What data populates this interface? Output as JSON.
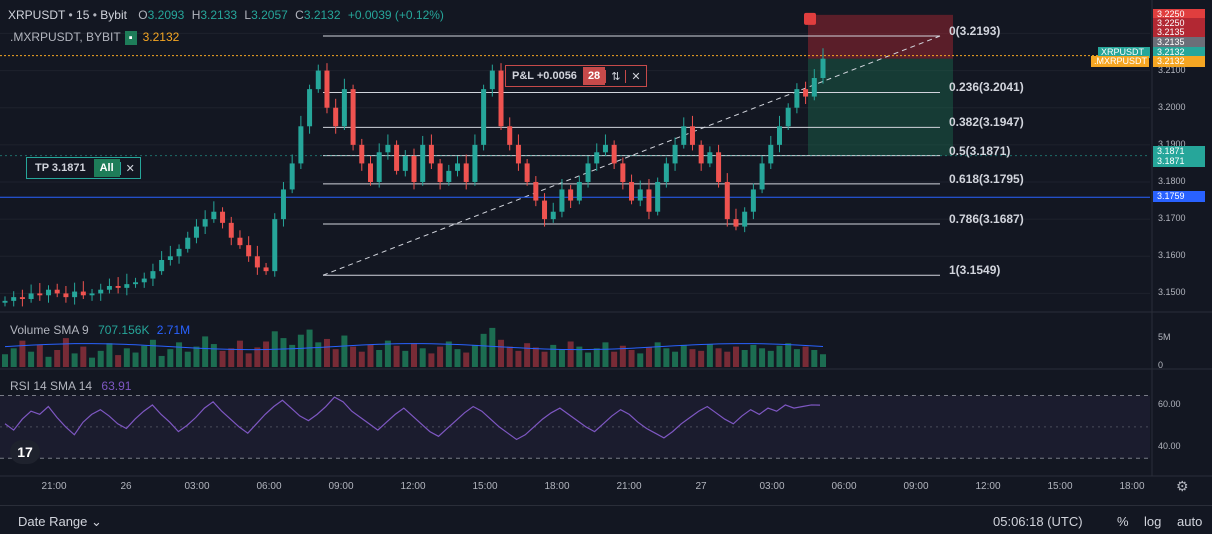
{
  "header": {
    "symbol": "XRPUSDT",
    "interval": "15",
    "exchange": "Bybit",
    "o_label": "O",
    "o": "3.2093",
    "h_label": "H",
    "h": "3.2133",
    "l_label": "L",
    "l": "3.2057",
    "c_label": "C",
    "c": "3.2132",
    "change": "+0.0039 (+0.12%)"
  },
  "secondary_symbol": {
    "label": ".MXRPUSDT, BYBIT",
    "price": "3.2132"
  },
  "tp_tag": {
    "label": "TP 3.1871",
    "all": "All",
    "close": "✕"
  },
  "pnl_tag": {
    "label": "P&L +0.0056",
    "qty": "28",
    "reverse": "⇅",
    "close": "✕"
  },
  "indicators": {
    "volume": {
      "name": "Volume SMA 9",
      "v1": "707.156K",
      "v2": "2.71M"
    },
    "rsi": {
      "name": "RSI 14 SMA 14",
      "value": "63.91"
    }
  },
  "price_tags": [
    {
      "text": "3.2250",
      "color": "#e03e3e",
      "price": 3.225
    },
    {
      "text": "3.2250",
      "color": "#b22833",
      "price": 3.2225
    },
    {
      "text": "3.2135",
      "color": "#b22833",
      "price": 3.22
    },
    {
      "text": "3.2135",
      "color": "#6b6e78",
      "price": 3.2174
    },
    {
      "text": "3.2132",
      "color": "#26a69a",
      "price": 3.2148
    },
    {
      "text": "3.2132",
      "color": "#f5a623",
      "price": 3.2124
    },
    {
      "text": "3.1871",
      "color": "#26a69a",
      "price": 3.188
    },
    {
      "text": "3.1871",
      "color": "#26a69a",
      "price": 3.1853
    },
    {
      "text": "3.1759",
      "color": "#2962ff",
      "price": 3.1759
    }
  ],
  "axis_price_ticks": [
    "3.2100",
    "3.2000",
    "3.1900",
    "3.1800",
    "3.1700",
    "3.1600",
    "3.1500"
  ],
  "pos_tags": [
    {
      "text": "XRPUSDT",
      "color": "#26a69a"
    },
    {
      "text": ".MXRPUSDT",
      "color": "#f5a623"
    }
  ],
  "volume_axis": [
    "5M",
    "0"
  ],
  "rsi_axis": [
    "60.00",
    "40.00"
  ],
  "time_labels": [
    "21:00",
    "26",
    "03:00",
    "06:00",
    "09:00",
    "12:00",
    "15:00",
    "18:00",
    "21:00",
    "27",
    "03:00",
    "06:00",
    "09:00",
    "12:00",
    "15:00",
    "18:00"
  ],
  "footer": {
    "date_range": "Date Range",
    "time": "05:06:18 (UTC)",
    "percent": "%",
    "log": "log",
    "auto": "auto"
  },
  "chart_data": {
    "type": "candlestick",
    "symbol": "XRPUSDT",
    "interval": "15",
    "ylim": [
      3.145,
      3.229
    ],
    "last_price": 3.2132,
    "blue_line_price": 3.1759,
    "fibonacci": [
      {
        "level": "0",
        "price": 3.2193
      },
      {
        "level": "0.236",
        "price": 3.2041
      },
      {
        "level": "0.382",
        "price": 3.1947
      },
      {
        "level": "0.5",
        "price": 3.1871
      },
      {
        "level": "0.618",
        "price": 3.1795
      },
      {
        "level": "0.786",
        "price": 3.1687
      },
      {
        "level": "1",
        "price": 3.1549
      }
    ],
    "short_position": {
      "entry": 3.2132,
      "stop": 3.225,
      "target": 3.1871
    },
    "candle_close_path": [
      3.148,
      3.149,
      3.1485,
      3.15,
      3.1495,
      3.151,
      3.15,
      3.149,
      3.1505,
      3.1495,
      3.15,
      3.151,
      3.152,
      3.1515,
      3.1525,
      3.153,
      3.154,
      3.156,
      3.159,
      3.16,
      3.162,
      3.165,
      3.168,
      3.17,
      3.172,
      3.169,
      3.165,
      3.163,
      3.16,
      3.157,
      3.156,
      3.17,
      3.178,
      3.185,
      3.195,
      3.205,
      3.21,
      3.2,
      3.195,
      3.205,
      3.19,
      3.185,
      3.18,
      3.188,
      3.19,
      3.183,
      3.187,
      3.18,
      3.19,
      3.185,
      3.18,
      3.183,
      3.185,
      3.18,
      3.19,
      3.205,
      3.21,
      3.195,
      3.19,
      3.185,
      3.18,
      3.175,
      3.17,
      3.172,
      3.178,
      3.175,
      3.18,
      3.185,
      3.188,
      3.19,
      3.185,
      3.18,
      3.175,
      3.178,
      3.172,
      3.18,
      3.185,
      3.19,
      3.195,
      3.19,
      3.185,
      3.188,
      3.18,
      3.17,
      3.168,
      3.172,
      3.178,
      3.185,
      3.19,
      3.195,
      3.2,
      3.205,
      3.203,
      3.208,
      3.2132
    ],
    "volume_path_m": [
      1.5,
      2.2,
      3.1,
      1.8,
      2.6,
      1.2,
      2.0,
      3.4,
      1.6,
      2.4,
      1.1,
      1.9,
      2.8,
      1.4,
      2.2,
      1.7,
      2.5,
      3.2,
      1.3,
      2.1,
      2.9,
      1.8,
      2.4,
      3.6,
      2.7,
      1.9,
      2.2,
      3.1,
      1.6,
      2.3,
      3.0,
      4.2,
      3.4,
      2.6,
      3.8,
      4.4,
      2.9,
      3.3,
      2.1,
      3.7,
      2.4,
      1.8,
      2.6,
      2.0,
      3.1,
      2.5,
      1.9,
      2.8,
      2.2,
      1.6,
      2.4,
      3.0,
      2.1,
      1.7,
      2.6,
      3.9,
      4.6,
      3.2,
      2.4,
      1.9,
      2.8,
      2.3,
      1.8,
      2.6,
      2.1,
      3.0,
      2.4,
      1.7,
      2.2,
      2.9,
      1.8,
      2.5,
      2.0,
      1.6,
      2.3,
      2.9,
      2.2,
      1.8,
      2.6,
      2.1,
      1.9,
      2.7,
      2.2,
      1.8,
      2.4,
      2.0,
      2.6,
      2.2,
      1.9,
      2.5,
      2.8,
      2.1,
      2.4,
      2.0,
      1.5
    ],
    "rsi_path": [
      52,
      48,
      55,
      60,
      58,
      63,
      56,
      50,
      45,
      53,
      58,
      61,
      57,
      52,
      49,
      55,
      60,
      64,
      58,
      53,
      47,
      51,
      56,
      62,
      66,
      60,
      55,
      50,
      46,
      52,
      58,
      63,
      67,
      62,
      57,
      54,
      58,
      63,
      69,
      66,
      60,
      56,
      52,
      48,
      53,
      58,
      62,
      57,
      52,
      47,
      44,
      49,
      54,
      59,
      63,
      60,
      55,
      50,
      46,
      42,
      45,
      50,
      55,
      59,
      62,
      58,
      54,
      50,
      47,
      52,
      57,
      61,
      58,
      53,
      49,
      46,
      43,
      47,
      52,
      56,
      60,
      63,
      59,
      55,
      52,
      57,
      61,
      58,
      62,
      60,
      64,
      62,
      63,
      64,
      63.91
    ]
  }
}
